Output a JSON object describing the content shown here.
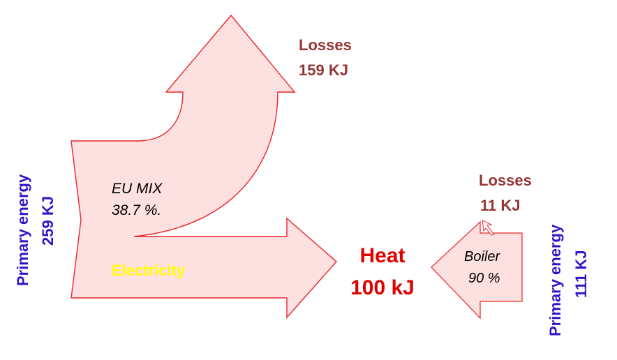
{
  "colors": {
    "arrow_fill": "#fde0e0",
    "arrow_stroke": "#e8262a",
    "losses_text": "#943634",
    "primary_text": "#2e16c8",
    "heat_text": "#e00000",
    "electricity_text": "#ffff00",
    "label_text": "#000000"
  },
  "left_flow": {
    "primary_label": "Primary energy",
    "primary_value": "259 KJ",
    "mix_label": "EU MIX",
    "mix_value": "38.7 %.",
    "output_label": "Electricity",
    "losses_label": "Losses",
    "losses_value": "159 KJ"
  },
  "heat": {
    "label": "Heat",
    "value": "100 kJ"
  },
  "right_flow": {
    "primary_label": "Primary energy",
    "primary_value": "111 KJ",
    "boiler_label": "Boiler",
    "boiler_value": "90 %",
    "losses_label": "Losses",
    "losses_value": "11 KJ"
  }
}
